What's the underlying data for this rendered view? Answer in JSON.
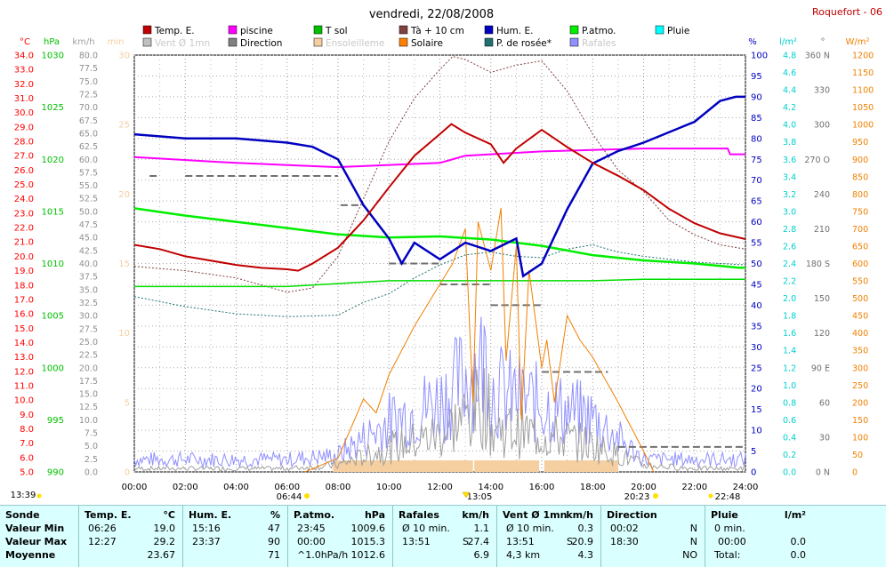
{
  "header": {
    "title": "vendredi, 22/08/2008",
    "station": "Roquefort - 06"
  },
  "colors": {
    "temp": "#c00000",
    "piscine": "#ff00ff",
    "tsol": "#00dd00",
    "ta10": "#804040",
    "hum": "#0000c0",
    "patm": "#00ee00",
    "pluie": "#00e0e0",
    "vent": "#a0a0a0",
    "direction": "#707070",
    "ensoleillement": "#f5cfa0",
    "solaire": "#f08000",
    "rosee": "#207070",
    "rafales": "#9090ff",
    "left_axis": "#ff0000"
  },
  "legend": [
    {
      "label": "Temp. E.",
      "color": "#c00000",
      "col": 0,
      "row": 0
    },
    {
      "label": "Vent Ø 1mn",
      "color": "#c0c0c0",
      "col": 0,
      "row": 1,
      "faded": true
    },
    {
      "label": "piscine",
      "color": "#ff00ff",
      "col": 1,
      "row": 0
    },
    {
      "label": "Direction",
      "color": "#808080",
      "col": 1,
      "row": 1
    },
    {
      "label": "T sol",
      "color": "#00c000",
      "col": 2,
      "row": 0
    },
    {
      "label": "Ensoleilleme",
      "color": "#f5cfa0",
      "col": 2,
      "row": 1,
      "faded": true
    },
    {
      "label": "Tà + 10 cm",
      "color": "#804040",
      "col": 3,
      "row": 0
    },
    {
      "label": "Solaire",
      "color": "#ff8000",
      "col": 3,
      "row": 1
    },
    {
      "label": "Hum. E.",
      "color": "#0000c0",
      "col": 4,
      "row": 0
    },
    {
      "label": "P. de rosée*",
      "color": "#207070",
      "col": 4,
      "row": 1
    },
    {
      "label": "P.atmo.",
      "color": "#00ee00",
      "col": 5,
      "row": 0
    },
    {
      "label": "Rafales",
      "color": "#9090ff",
      "col": 5,
      "row": 1,
      "faded": true
    },
    {
      "label": "Pluie",
      "color": "#00ffff",
      "col": 6,
      "row": 0
    }
  ],
  "axes": {
    "units": [
      "°C",
      "hPa",
      "km/h",
      "min",
      "%",
      "l/m²",
      "°",
      "W/m²"
    ],
    "temp_ticks": [
      "34.0",
      "33.0",
      "32.0",
      "31.0",
      "30.0",
      "29.0",
      "28.0",
      "27.0",
      "26.0",
      "25.0",
      "24.0",
      "23.0",
      "22.0",
      "21.0",
      "20.0",
      "19.0",
      "18.0",
      "17.0",
      "16.0",
      "15.0",
      "14.0",
      "13.0",
      "12.0",
      "11.0",
      "10.0",
      "9.0",
      "8.0",
      "7.0",
      "6.0",
      "5.0"
    ],
    "hpa_ticks": [
      "1030",
      "1025",
      "1020",
      "1015",
      "1010",
      "1005",
      "1000",
      "995",
      "990"
    ],
    "kmh_ticks": [
      "80.0",
      "77.5",
      "75.0",
      "72.5",
      "70.0",
      "67.5",
      "65.0",
      "62.5",
      "60.0",
      "57.5",
      "55.0",
      "52.5",
      "50.0",
      "47.5",
      "45.0",
      "42.5",
      "40.0",
      "37.5",
      "35.0",
      "32.5",
      "30.0",
      "27.5",
      "25.0",
      "22.5",
      "20.0",
      "17.5",
      "15.0",
      "12.5",
      "10.0",
      "7.5",
      "5.0",
      "2.5",
      "0.0"
    ],
    "min_ticks": [
      "30",
      "25",
      "20",
      "15",
      "10",
      "5",
      "0"
    ],
    "pct_ticks": [
      "100",
      "95",
      "90",
      "85",
      "80",
      "75",
      "70",
      "65",
      "60",
      "55",
      "50",
      "45",
      "40",
      "35",
      "30",
      "25",
      "20",
      "15",
      "10",
      "5",
      "0"
    ],
    "lm2_ticks": [
      "4.8",
      "4.6",
      "4.4",
      "4.2",
      "4.0",
      "3.8",
      "3.6",
      "3.4",
      "3.2",
      "3.0",
      "2.8",
      "2.6",
      "2.4",
      "2.2",
      "2.0",
      "1.8",
      "1.6",
      "1.4",
      "1.2",
      "1.0",
      "0.8",
      "0.6",
      "0.4",
      "0.2",
      "0.0"
    ],
    "deg_ticks": [
      "360 N",
      "330",
      "300",
      "270 O",
      "240",
      "210",
      "180 S",
      "150",
      "120",
      "90 E",
      "60",
      "30",
      "0 N"
    ],
    "wm2_ticks": [
      "1200",
      "1150",
      "1100",
      "1050",
      "1000",
      "950",
      "900",
      "850",
      "800",
      "750",
      "700",
      "650",
      "600",
      "550",
      "500",
      "450",
      "400",
      "350",
      "300",
      "250",
      "200",
      "150",
      "100",
      "50",
      "0"
    ],
    "time_ticks": [
      "00:00",
      "02:00",
      "04:00",
      "06:00",
      "08:00",
      "10:00",
      "12:00",
      "14:00",
      "16:00",
      "18:00",
      "20:00",
      "22:00",
      "24:00"
    ]
  },
  "events": [
    {
      "label": "13:39",
      "pos": "below-left"
    },
    {
      "label": "06:44",
      "pos": "sunrise"
    },
    {
      "label": "13:05",
      "pos": "noon"
    },
    {
      "label": "20:23",
      "pos": "sunset"
    },
    {
      "label": "22:48",
      "pos": "moon"
    }
  ],
  "chart_data": {
    "type": "line",
    "title": "vendredi, 22/08/2008",
    "x_range": [
      "00:00",
      "24:00"
    ],
    "grid": true,
    "series": [
      {
        "name": "Temp. E.",
        "axis": "°C",
        "points": [
          [
            0,
            20.8
          ],
          [
            1,
            20.5
          ],
          [
            2,
            20.0
          ],
          [
            4,
            19.4
          ],
          [
            5,
            19.2
          ],
          [
            6,
            19.1
          ],
          [
            6.43,
            19.0
          ],
          [
            7,
            19.5
          ],
          [
            8,
            20.6
          ],
          [
            9,
            22.5
          ],
          [
            10,
            24.8
          ],
          [
            11,
            27.0
          ],
          [
            12,
            28.5
          ],
          [
            12.45,
            29.2
          ],
          [
            13,
            28.6
          ],
          [
            14,
            27.8
          ],
          [
            14.5,
            26.5
          ],
          [
            15,
            27.5
          ],
          [
            16,
            28.8
          ],
          [
            17,
            27.6
          ],
          [
            18,
            26.5
          ],
          [
            19,
            25.6
          ],
          [
            20,
            24.6
          ],
          [
            21,
            23.3
          ],
          [
            22,
            22.3
          ],
          [
            23,
            21.6
          ],
          [
            24,
            21.2
          ]
        ]
      },
      {
        "name": "Hum. E.",
        "axis": "%",
        "points": [
          [
            0,
            81
          ],
          [
            2,
            80
          ],
          [
            4,
            80
          ],
          [
            6,
            79
          ],
          [
            7,
            78
          ],
          [
            8,
            75
          ],
          [
            9,
            64
          ],
          [
            10,
            56
          ],
          [
            10.5,
            50
          ],
          [
            11,
            55
          ],
          [
            12,
            51
          ],
          [
            13,
            55
          ],
          [
            14,
            53
          ],
          [
            15,
            56
          ],
          [
            15.27,
            47
          ],
          [
            16,
            50
          ],
          [
            17,
            63
          ],
          [
            18,
            74
          ],
          [
            19,
            77
          ],
          [
            20,
            79
          ],
          [
            22,
            84
          ],
          [
            23,
            89
          ],
          [
            23.62,
            90
          ],
          [
            24,
            90
          ]
        ]
      },
      {
        "name": "P.atmo.",
        "axis": "hPa",
        "points": [
          [
            0,
            1015.3
          ],
          [
            2,
            1014.6
          ],
          [
            4,
            1014.0
          ],
          [
            6,
            1013.4
          ],
          [
            8,
            1012.8
          ],
          [
            10,
            1012.5
          ],
          [
            12,
            1012.6
          ],
          [
            14,
            1012.3
          ],
          [
            16,
            1011.7
          ],
          [
            18,
            1010.8
          ],
          [
            20,
            1010.3
          ],
          [
            22,
            1010.0
          ],
          [
            23.75,
            1009.6
          ],
          [
            24,
            1009.6
          ]
        ]
      },
      {
        "name": "T sol",
        "axis": "°C",
        "points": [
          [
            0,
            17.9
          ],
          [
            6,
            17.9
          ],
          [
            8,
            18.1
          ],
          [
            10,
            18.3
          ],
          [
            12,
            18.3
          ],
          [
            14,
            18.3
          ],
          [
            16,
            18.3
          ],
          [
            18,
            18.3
          ],
          [
            20,
            18.4
          ],
          [
            22,
            18.4
          ],
          [
            24,
            18.4
          ]
        ]
      },
      {
        "name": "piscine",
        "axis": "°C",
        "points": [
          [
            0,
            26.9
          ],
          [
            4,
            26.5
          ],
          [
            8,
            26.2
          ],
          [
            12,
            26.5
          ],
          [
            13,
            27.0
          ],
          [
            16,
            27.3
          ],
          [
            20,
            27.5
          ],
          [
            23.3,
            27.5
          ],
          [
            23.4,
            27.1
          ],
          [
            24,
            27.1
          ]
        ]
      },
      {
        "name": "Tà + 10 cm",
        "axis": "°C",
        "points": [
          [
            0,
            19.3
          ],
          [
            2,
            19.0
          ],
          [
            4,
            18.5
          ],
          [
            6,
            17.5
          ],
          [
            7,
            17.8
          ],
          [
            8,
            20.0
          ],
          [
            9,
            24.0
          ],
          [
            10,
            28.0
          ],
          [
            11,
            31.0
          ],
          [
            12,
            33.0
          ],
          [
            12.5,
            33.9
          ],
          [
            13,
            33.7
          ],
          [
            14,
            32.8
          ],
          [
            15,
            33.3
          ],
          [
            16,
            33.6
          ],
          [
            17,
            31.5
          ],
          [
            18,
            28.5
          ],
          [
            19,
            26.0
          ],
          [
            20,
            24.5
          ],
          [
            21,
            22.5
          ],
          [
            22,
            21.5
          ],
          [
            23,
            20.8
          ],
          [
            24,
            20.5
          ]
        ]
      },
      {
        "name": "P. de rosée*",
        "axis": "°C",
        "points": [
          [
            0,
            17.2
          ],
          [
            2,
            16.5
          ],
          [
            4,
            16.0
          ],
          [
            6,
            15.8
          ],
          [
            8,
            15.9
          ],
          [
            9,
            16.8
          ],
          [
            10,
            17.4
          ],
          [
            11,
            18.5
          ],
          [
            12,
            19.4
          ],
          [
            13,
            20.1
          ],
          [
            14,
            20.3
          ],
          [
            15,
            20.0
          ],
          [
            16,
            19.9
          ],
          [
            17,
            20.5
          ],
          [
            18,
            20.8
          ],
          [
            19,
            20.3
          ],
          [
            20,
            20.0
          ],
          [
            22,
            19.6
          ],
          [
            24,
            19.4
          ]
        ]
      },
      {
        "name": "Solaire",
        "axis": "W/m²",
        "points": [
          [
            6.7,
            0
          ],
          [
            8,
            40
          ],
          [
            9,
            210
          ],
          [
            9.5,
            170
          ],
          [
            10,
            280
          ],
          [
            11,
            420
          ],
          [
            12,
            540
          ],
          [
            12.5,
            600
          ],
          [
            13,
            700
          ],
          [
            13.3,
            200
          ],
          [
            13.5,
            720
          ],
          [
            14,
            580
          ],
          [
            14.4,
            760
          ],
          [
            14.6,
            320
          ],
          [
            15,
            650
          ],
          [
            15.2,
            150
          ],
          [
            15.5,
            580
          ],
          [
            16,
            300
          ],
          [
            16.2,
            380
          ],
          [
            16.5,
            200
          ],
          [
            17,
            450
          ],
          [
            17.5,
            380
          ],
          [
            18,
            330
          ],
          [
            19,
            200
          ],
          [
            20,
            60
          ],
          [
            20.4,
            0
          ]
        ]
      },
      {
        "name": "Rafales",
        "axis": "km/h",
        "points": [
          [
            0,
            3
          ],
          [
            2,
            3
          ],
          [
            4,
            3
          ],
          [
            6,
            3
          ],
          [
            8,
            4
          ],
          [
            10,
            12
          ],
          [
            12,
            17
          ],
          [
            13.85,
            27.4
          ],
          [
            14,
            20
          ],
          [
            16,
            16
          ],
          [
            18,
            13
          ],
          [
            19,
            8
          ],
          [
            20,
            3
          ],
          [
            22,
            3
          ],
          [
            24,
            3
          ]
        ]
      },
      {
        "name": "Vent Ø 1mn",
        "axis": "km/h",
        "points": [
          [
            0,
            1
          ],
          [
            6,
            1
          ],
          [
            8,
            2
          ],
          [
            10,
            7
          ],
          [
            12,
            11
          ],
          [
            13.85,
            20.9
          ],
          [
            14,
            13
          ],
          [
            16,
            11
          ],
          [
            18,
            8
          ],
          [
            20,
            2
          ],
          [
            22,
            1
          ],
          [
            24,
            1
          ]
        ]
      }
    ]
  },
  "summary": {
    "rows": [
      "Sonde",
      "Valeur Min",
      "Valeur Max",
      "Moyenne"
    ],
    "temp": {
      "title": "Temp. E.",
      "unit": "°C",
      "min_time": "06:26",
      "min_val": "19.0",
      "max_time": "12:27",
      "max_val": "29.2",
      "avg": "23.67"
    },
    "hum": {
      "title": "Hum. E.",
      "unit": "%",
      "min_time": "15:16",
      "min_val": "47",
      "max_time": "23:37",
      "max_val": "90",
      "avg": "71"
    },
    "patm": {
      "title": "P.atmo.",
      "unit": "hPa",
      "min_time": "23:45",
      "min_val": "1009.6",
      "max_time": "00:00",
      "max_val": "1015.3",
      "avg_note": "^1.0hPa/h",
      "avg": "1012.6"
    },
    "raf": {
      "title": "Rafales",
      "unit": "km/h",
      "min_time": "Ø 10 min.",
      "min_val": "1.1",
      "max_time": "13:51",
      "max_dir": "S",
      "max_val": "27.4",
      "avg": "6.9"
    },
    "vent": {
      "title": "Vent Ø 1mn",
      "unit": "km/h",
      "min_time": "Ø 10 min.",
      "min_val": "0.3",
      "max_time": "13:51",
      "max_dir": "S",
      "max_val": "20.9",
      "avg_note": "4,3 km",
      "avg": "4.3"
    },
    "dir": {
      "title": "Direction",
      "min_time": "00:02",
      "min_val": "N",
      "max_time": "18:30",
      "max_val": "N",
      "avg": "NO"
    },
    "pluie": {
      "title": "Pluie",
      "unit": "l/m²",
      "min_time": "0 min.",
      "max_time": "00:00",
      "max_val": "0.0",
      "avg_note": "Total:",
      "avg": "0.0"
    }
  }
}
